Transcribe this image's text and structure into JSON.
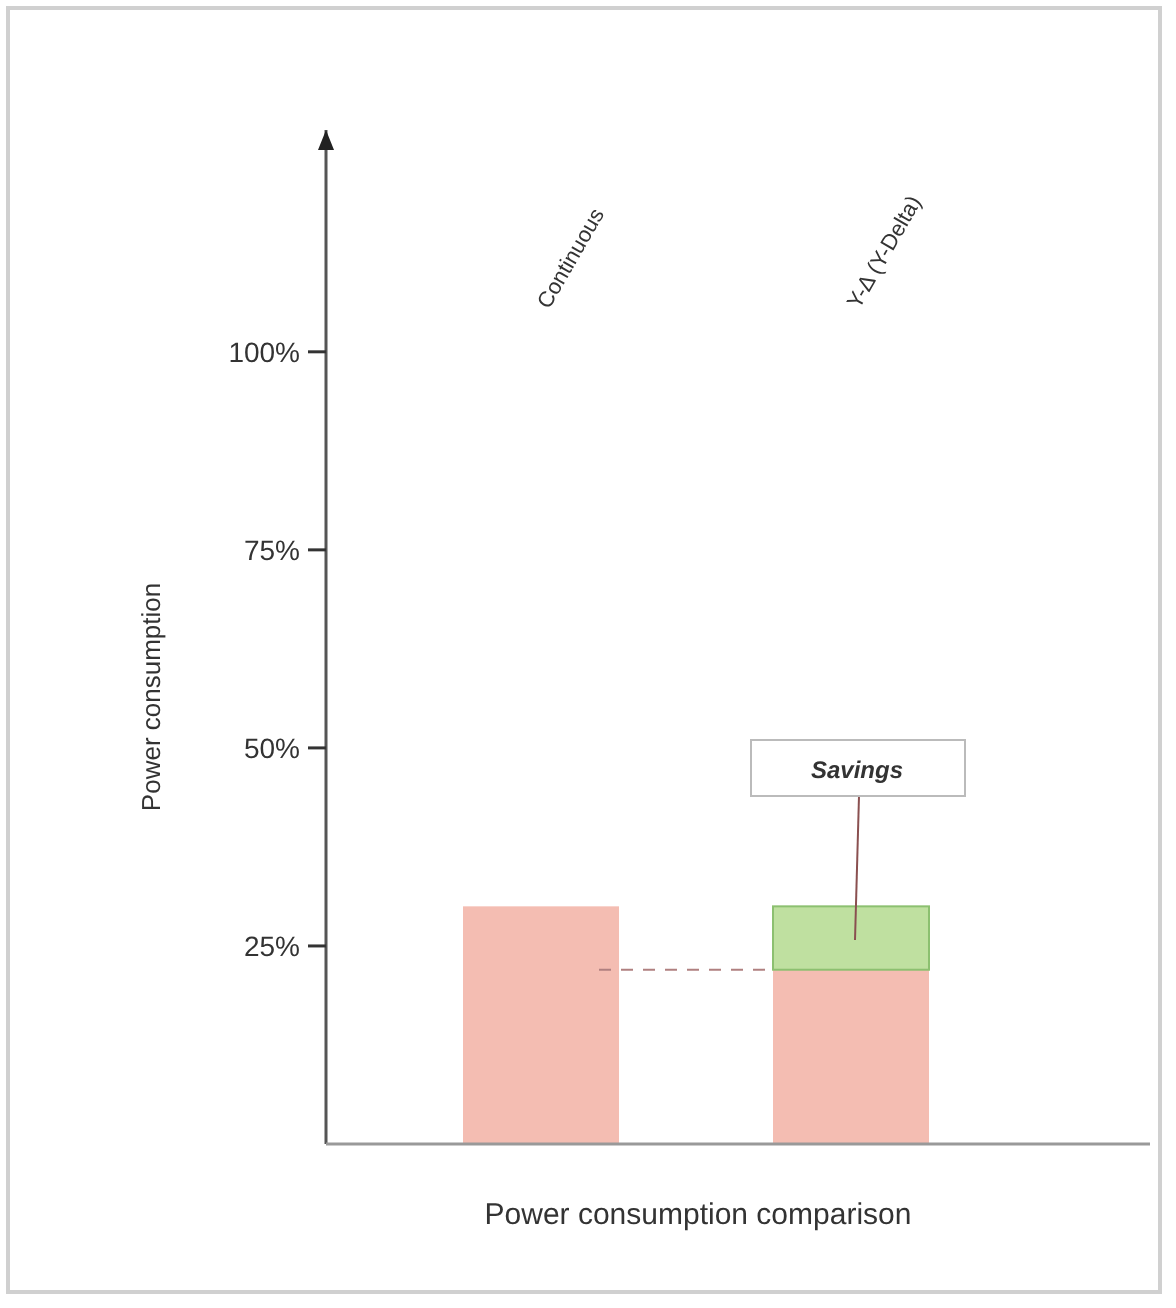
{
  "chart_data": {
    "type": "bar",
    "stacked": true,
    "xlabel": "Power consumption comparison",
    "ylabel": "Power consumption",
    "categories": [
      "Continuous",
      "Y-Δ (Y-Delta)"
    ],
    "series": [
      {
        "color": "#f4bdb2",
        "values": [
          30,
          22
        ]
      },
      {
        "color": "#bfe0a0",
        "values": [
          null,
          8
        ]
      }
    ],
    "ylim": [
      0,
      128
    ],
    "yticks": [
      {
        "value": 25,
        "label": "25%"
      },
      {
        "value": 50,
        "label": "50%"
      },
      {
        "value": 75,
        "label": "75%"
      },
      {
        "value": 100,
        "label": "100%"
      }
    ],
    "grid": false,
    "ref_lines": [
      {
        "axis": "y",
        "value": 22,
        "line_style": "dashed",
        "color": "#b08080"
      }
    ],
    "annotations": [
      "Savings"
    ]
  }
}
